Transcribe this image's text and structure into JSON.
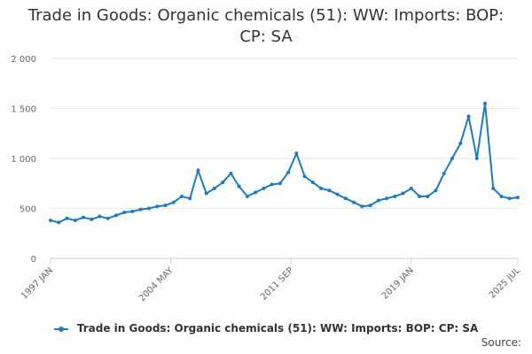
{
  "title": "Trade in Goods: Organic chemicals (51): WW: Imports: BOP: CP: SA",
  "source_label": "Source:",
  "colors": {
    "series": "#1f7bbf",
    "grid": "#e6e6e6",
    "axis": "#c0d0e0"
  },
  "chart_data": {
    "type": "line",
    "title": "Trade in Goods: Organic chemicals (51): WW: Imports: BOP: CP: SA",
    "xlabel": "",
    "ylabel": "",
    "ylim": [
      0,
      2000
    ],
    "yticks": [
      0,
      500,
      1000,
      1500,
      2000
    ],
    "ytick_labels": [
      "0",
      "500",
      "1 000",
      "1 500",
      "2 000"
    ],
    "xlim": [
      "1997-01",
      "2025-07"
    ],
    "xticks": [
      "1997-01",
      "2004-05",
      "2011-09",
      "2019-01",
      "2025-07"
    ],
    "xtick_labels": [
      "1997 JAN",
      "2004 MAY",
      "2011 SEP",
      "2019 JAN",
      "2025 JUL"
    ],
    "grid": true,
    "legend_position": "bottom",
    "series": [
      {
        "name": "Trade in Goods: Organic chemicals (51): WW: Imports: BOP: CP: SA",
        "x": [
          "1997-01",
          "1997-07",
          "1998-01",
          "1998-07",
          "1999-01",
          "1999-07",
          "2000-01",
          "2000-07",
          "2001-01",
          "2001-07",
          "2002-01",
          "2002-07",
          "2003-01",
          "2003-07",
          "2004-01",
          "2004-07",
          "2005-01",
          "2005-07",
          "2006-01",
          "2006-07",
          "2007-01",
          "2007-07",
          "2008-01",
          "2008-07",
          "2009-01",
          "2009-07",
          "2010-01",
          "2010-07",
          "2011-01",
          "2011-07",
          "2012-01",
          "2012-07",
          "2013-01",
          "2013-07",
          "2014-01",
          "2014-07",
          "2015-01",
          "2015-07",
          "2016-01",
          "2016-07",
          "2017-01",
          "2017-07",
          "2018-01",
          "2018-07",
          "2019-01",
          "2019-07",
          "2020-01",
          "2020-07",
          "2021-01",
          "2021-07",
          "2022-01",
          "2022-07",
          "2023-01",
          "2023-07",
          "2024-01",
          "2024-07",
          "2025-01",
          "2025-07"
        ],
        "values": [
          380,
          360,
          400,
          380,
          410,
          390,
          420,
          400,
          430,
          460,
          470,
          490,
          500,
          520,
          530,
          560,
          620,
          600,
          880,
          650,
          700,
          760,
          850,
          720,
          620,
          660,
          700,
          740,
          750,
          860,
          1050,
          820,
          760,
          700,
          680,
          640,
          600,
          560,
          520,
          530,
          580,
          600,
          620,
          650,
          700,
          620,
          620,
          680,
          850,
          1000,
          1150,
          1420,
          1000,
          1550,
          700,
          620,
          600,
          610
        ]
      }
    ]
  }
}
